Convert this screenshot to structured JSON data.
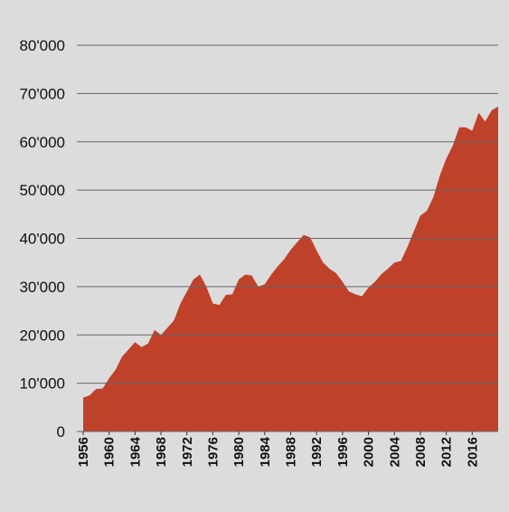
{
  "chart_data": {
    "type": "area",
    "color": "#c0412a",
    "grid": true,
    "x": [
      1956,
      1957,
      1958,
      1959,
      1960,
      1961,
      1962,
      1963,
      1964,
      1965,
      1966,
      1967,
      1968,
      1969,
      1970,
      1971,
      1972,
      1973,
      1974,
      1975,
      1976,
      1977,
      1978,
      1979,
      1980,
      1981,
      1982,
      1983,
      1984,
      1985,
      1986,
      1987,
      1988,
      1989,
      1990,
      1991,
      1992,
      1993,
      1994,
      1995,
      1996,
      1997,
      1998,
      1999,
      2000,
      2001,
      2002,
      2003,
      2004,
      2005,
      2006,
      2007,
      2008,
      2009,
      2010,
      2011,
      2012,
      2013,
      2014,
      2015,
      2016,
      2017,
      2018,
      2019,
      2020
    ],
    "values": [
      7000,
      7500,
      8800,
      8900,
      11000,
      12800,
      15500,
      17000,
      18500,
      17500,
      18200,
      21000,
      20000,
      21500,
      23000,
      26500,
      29000,
      31500,
      32500,
      30000,
      26500,
      26200,
      28300,
      28400,
      31500,
      32500,
      32300,
      30000,
      30500,
      32500,
      34200,
      35700,
      37600,
      39200,
      40700,
      40200,
      37500,
      35000,
      33700,
      32800,
      31000,
      29000,
      28400,
      28000,
      29800,
      31000,
      32600,
      33700,
      35000,
      35300,
      38200,
      41500,
      44700,
      45700,
      48500,
      53000,
      56500,
      59200,
      63000,
      63000,
      62300,
      66000,
      64200,
      66500,
      67300
    ],
    "xlim": [
      1956,
      2020
    ],
    "xticks": [
      1956,
      1960,
      1964,
      1968,
      1972,
      1976,
      1980,
      1984,
      1988,
      1992,
      1996,
      2000,
      2004,
      2008,
      2012,
      2016
    ],
    "ylim": [
      0,
      80000
    ],
    "yticks": [
      0,
      {
        "value": 10000,
        "label": "10'000"
      },
      {
        "value": 20000,
        "label": "20'000"
      },
      {
        "value": 30000,
        "label": "30'000"
      },
      {
        "value": 40000,
        "label": "40'000"
      },
      {
        "value": 50000,
        "label": "50'000"
      },
      {
        "value": 60000,
        "label": "60'000"
      },
      {
        "value": 70000,
        "label": "70'000"
      },
      {
        "value": 80000,
        "label": "80'000"
      }
    ]
  }
}
